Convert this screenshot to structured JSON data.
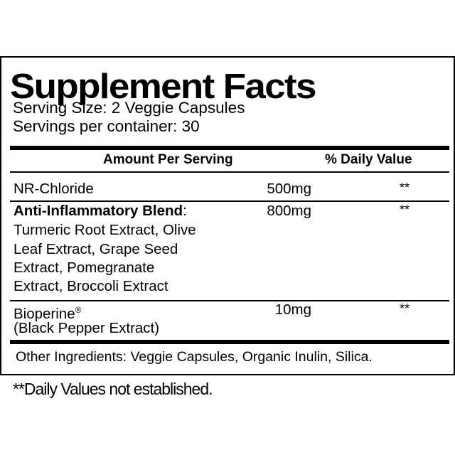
{
  "title": "Supplement Facts",
  "serving_size": "Serving Size: 2 Veggie Capsules",
  "servings_per_container": "Servings per container: 30",
  "header": {
    "amount": "Amount Per Serving",
    "daily_value": "% Daily Value"
  },
  "rows": [
    {
      "name": "NR-Chloride",
      "amount": "500mg",
      "dv": "**"
    },
    {
      "name": "Anti-Inflammatory Blend",
      "name_suffix": ":",
      "amount": "800mg",
      "dv": "**",
      "sub": [
        "Turmeric Root Extract, Olive",
        "Leaf Extract, Grape Seed",
        "Extract, Pomegranate",
        "Extract, Broccoli Extract"
      ]
    },
    {
      "name": "Bioperine",
      "mark": "®",
      "amount": "10mg",
      "dv": "**",
      "sub": [
        "(Black Pepper Extract)"
      ]
    }
  ],
  "other_ingredients": "Other Ingredients: Veggie Capsules, Organic Inulin, Silica.",
  "footnote": "**Daily Values not established."
}
